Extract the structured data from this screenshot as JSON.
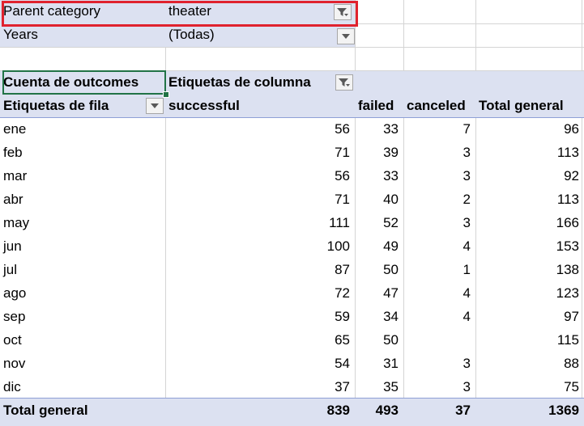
{
  "filters": [
    {
      "label": "Parent category",
      "value": "theater",
      "icon": "filter-funnel-icon"
    },
    {
      "label": "Years",
      "value": "(Todas)",
      "icon": "chevron-down-icon"
    }
  ],
  "pivot": {
    "value_label": "Cuenta de outcomes",
    "column_labels_header": "Etiquetas de columna",
    "row_labels_header": "Etiquetas de fila",
    "columns": [
      "successful",
      "failed",
      "canceled",
      "Total general"
    ],
    "rows": [
      {
        "label": "ene",
        "successful": "56",
        "failed": "33",
        "canceled": "7",
        "total": "96"
      },
      {
        "label": "feb",
        "successful": "71",
        "failed": "39",
        "canceled": "3",
        "total": "113"
      },
      {
        "label": "mar",
        "successful": "56",
        "failed": "33",
        "canceled": "3",
        "total": "92"
      },
      {
        "label": "abr",
        "successful": "71",
        "failed": "40",
        "canceled": "2",
        "total": "113"
      },
      {
        "label": "may",
        "successful": "111",
        "failed": "52",
        "canceled": "3",
        "total": "166"
      },
      {
        "label": "jun",
        "successful": "100",
        "failed": "49",
        "canceled": "4",
        "total": "153"
      },
      {
        "label": "jul",
        "successful": "87",
        "failed": "50",
        "canceled": "1",
        "total": "138"
      },
      {
        "label": "ago",
        "successful": "72",
        "failed": "47",
        "canceled": "4",
        "total": "123"
      },
      {
        "label": "sep",
        "successful": "59",
        "failed": "34",
        "canceled": "4",
        "total": "97"
      },
      {
        "label": "oct",
        "successful": "65",
        "failed": "50",
        "canceled": "",
        "total": "115"
      },
      {
        "label": "nov",
        "successful": "54",
        "failed": "31",
        "canceled": "3",
        "total": "88"
      },
      {
        "label": "dic",
        "successful": "37",
        "failed": "35",
        "canceled": "3",
        "total": "75"
      }
    ],
    "grand_total": {
      "label": "Total general",
      "successful": "839",
      "failed": "493",
      "canceled": "37",
      "total": "1369"
    }
  },
  "colors": {
    "header_band": "#dce1f1",
    "highlight_border": "#e0222e",
    "active_cell": "#217346"
  }
}
